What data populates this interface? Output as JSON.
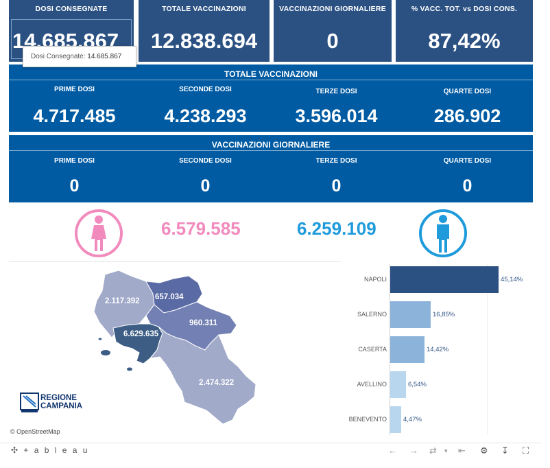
{
  "kpis": [
    {
      "label": "DOSI  CONSEGNATE",
      "value": "14.685.867"
    },
    {
      "label": "TOTALE VACCINAZIONI",
      "value": "12.838.694"
    },
    {
      "label": "VACCINAZIONI GIORNALIERE",
      "value": "0"
    },
    {
      "label": "% VACC. TOT. vs DOSI CONS.",
      "value": "87,42%"
    }
  ],
  "tooltip": {
    "label": "Dosi Consegnate:",
    "value": "14.685.867"
  },
  "totale_vaccinazioni": {
    "title": "TOTALE VACCINAZIONI",
    "cells": [
      {
        "label": "PRIME DOSI",
        "value": "4.717.485"
      },
      {
        "label": "SECONDE DOSI",
        "value": "4.238.293"
      },
      {
        "label": "TERZE DOSI",
        "value": "3.596.014"
      },
      {
        "label": "QUARTE DOSI",
        "value": "286.902"
      }
    ]
  },
  "vaccinazioni_giornaliere": {
    "title": "VACCINAZIONI GIORNALIERE",
    "cells": [
      {
        "label": "PRIME DOSI",
        "value": "0"
      },
      {
        "label": "SECONDE DOSI",
        "value": "0"
      },
      {
        "label": "TERZE DOSI",
        "value": "0"
      },
      {
        "label": "QUARTE DOSI",
        "value": "0"
      }
    ]
  },
  "gender": {
    "female_value": "6.579.585",
    "male_value": "6.259.109",
    "female_color": "#f28bbd",
    "male_color": "#1f9bdc",
    "female_icon": "female-icon",
    "male_icon": "male-icon"
  },
  "map": {
    "labels": {
      "caserta": "2.117.392",
      "benevento": "657.034",
      "avellino": "960.311",
      "napoli": "6.629.635",
      "salerno": "2.474.322"
    },
    "attribution": "© OpenStreetMap",
    "logo_line1": "REGIONE",
    "logo_line2": "CAMPANIA"
  },
  "chart_data": {
    "type": "bar",
    "orientation": "horizontal",
    "categories": [
      "NAPOLI",
      "SALERNO",
      "CASERTA",
      "AVELLINO",
      "BENEVENTO"
    ],
    "values": [
      45.14,
      16.85,
      14.42,
      6.54,
      4.47
    ],
    "labels": [
      "45,14%",
      "16,85%",
      "14,42%",
      "6,54%",
      "4,47%"
    ],
    "colors": [
      "#2b5183",
      "#8cb3da",
      "#8cb3da",
      "#b8d7ef",
      "#b8d7ef"
    ],
    "xlim": [
      0,
      45.14
    ]
  },
  "footer": {
    "brand": "+ a b l e a u"
  }
}
